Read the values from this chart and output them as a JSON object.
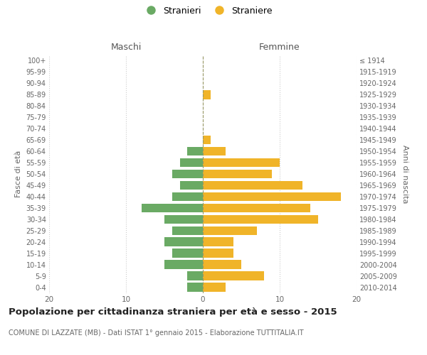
{
  "age_groups": [
    "0-4",
    "5-9",
    "10-14",
    "15-19",
    "20-24",
    "25-29",
    "30-34",
    "35-39",
    "40-44",
    "45-49",
    "50-54",
    "55-59",
    "60-64",
    "65-69",
    "70-74",
    "75-79",
    "80-84",
    "85-89",
    "90-94",
    "95-99",
    "100+"
  ],
  "birth_years": [
    "2010-2014",
    "2005-2009",
    "2000-2004",
    "1995-1999",
    "1990-1994",
    "1985-1989",
    "1980-1984",
    "1975-1979",
    "1970-1974",
    "1965-1969",
    "1960-1964",
    "1955-1959",
    "1950-1954",
    "1945-1949",
    "1940-1944",
    "1935-1939",
    "1930-1934",
    "1925-1929",
    "1920-1924",
    "1915-1919",
    "≤ 1914"
  ],
  "maschi": [
    2,
    2,
    5,
    4,
    5,
    4,
    5,
    8,
    4,
    3,
    4,
    3,
    2,
    0,
    0,
    0,
    0,
    0,
    0,
    0,
    0
  ],
  "femmine": [
    3,
    8,
    5,
    4,
    4,
    7,
    15,
    14,
    18,
    13,
    9,
    10,
    3,
    1,
    0,
    0,
    0,
    1,
    0,
    0,
    0
  ],
  "maschi_color": "#6aaa64",
  "femmine_color": "#f0b429",
  "title": "Popolazione per cittadinanza straniera per età e sesso - 2015",
  "subtitle": "COMUNE DI LAZZATE (MB) - Dati ISTAT 1° gennaio 2015 - Elaborazione TUTTITALIA.IT",
  "xlabel_left": "Maschi",
  "xlabel_right": "Femmine",
  "ylabel_left": "Fasce di età",
  "ylabel_right": "Anni di nascita",
  "legend_maschi": "Stranieri",
  "legend_femmine": "Straniere",
  "xlim": 20,
  "background_color": "#ffffff",
  "grid_color": "#cccccc"
}
